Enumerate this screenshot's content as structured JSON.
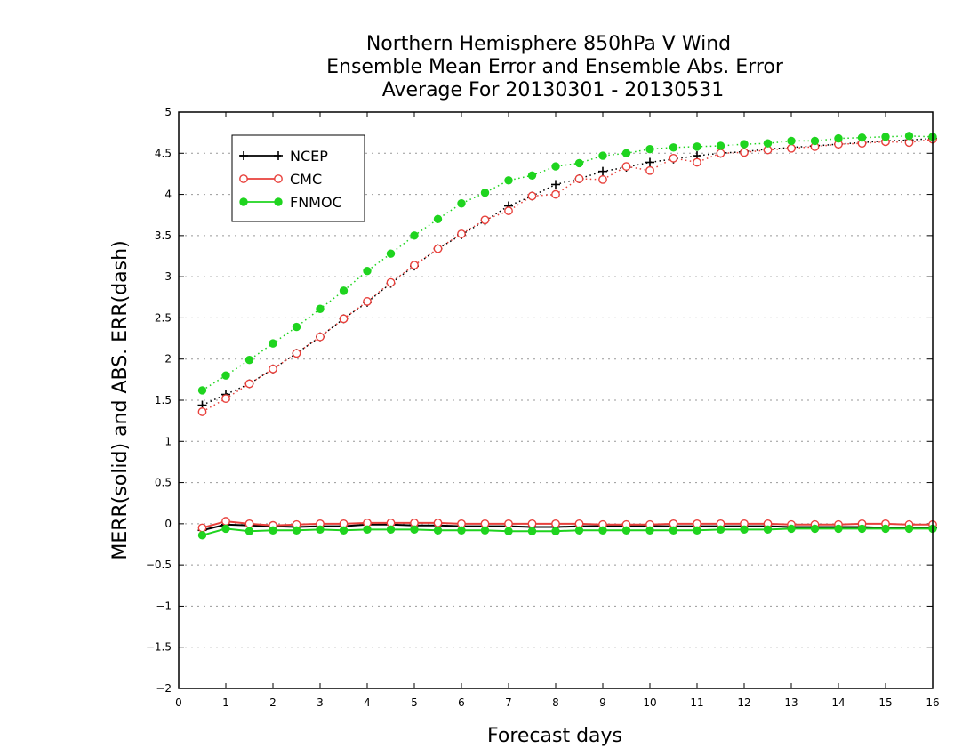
{
  "chart_data": {
    "type": "line",
    "title": [
      "Northern Hemisphere 850hPa V Wind",
      "Ensemble Mean Error and Ensemble Abs. Error",
      "Average For 20130301 - 20130531"
    ],
    "xlabel": "Forecast days",
    "ylabel": "MERR(solid) and ABS. ERR(dash)",
    "xlim": [
      0,
      16
    ],
    "ylim": [
      -2,
      5
    ],
    "x_ticks": [
      0,
      1,
      2,
      3,
      4,
      5,
      6,
      7,
      8,
      9,
      10,
      11,
      12,
      13,
      14,
      15,
      16
    ],
    "y_ticks": [
      -2,
      -1.5,
      -1,
      -0.5,
      0,
      0.5,
      1,
      1.5,
      2,
      2.5,
      3,
      3.5,
      4,
      4.5,
      5
    ],
    "grid": "horizontal dotted",
    "legend_position": "top-left",
    "x": [
      0.5,
      1,
      1.5,
      2,
      2.5,
      3,
      3.5,
      4,
      4.5,
      5,
      5.5,
      6,
      6.5,
      7,
      7.5,
      8,
      8.5,
      9,
      9.5,
      10,
      10.5,
      11,
      11.5,
      12,
      12.5,
      13,
      13.5,
      14,
      14.5,
      15,
      15.5,
      16
    ],
    "series": [
      {
        "name": "NCEP",
        "color": "#000000",
        "marker": "plus",
        "abs_err": [
          1.44,
          1.57,
          1.7,
          1.88,
          2.07,
          2.27,
          2.49,
          2.69,
          2.92,
          3.13,
          3.34,
          3.51,
          3.68,
          3.86,
          3.98,
          4.12,
          4.19,
          4.28,
          4.33,
          4.39,
          4.43,
          4.47,
          4.5,
          4.52,
          4.55,
          4.57,
          4.59,
          4.61,
          4.63,
          4.65,
          4.66,
          4.68
        ],
        "mean_err": [
          -0.08,
          -0.01,
          -0.02,
          -0.03,
          -0.04,
          -0.03,
          -0.03,
          -0.01,
          -0.01,
          -0.02,
          -0.02,
          -0.03,
          -0.03,
          -0.03,
          -0.04,
          -0.04,
          -0.03,
          -0.03,
          -0.03,
          -0.03,
          -0.03,
          -0.03,
          -0.03,
          -0.03,
          -0.03,
          -0.04,
          -0.04,
          -0.04,
          -0.04,
          -0.05,
          -0.05,
          -0.05
        ]
      },
      {
        "name": "CMC",
        "color": "#e8413c",
        "marker": "open-circle",
        "abs_err": [
          1.36,
          1.52,
          1.7,
          1.88,
          2.07,
          2.27,
          2.49,
          2.7,
          2.93,
          3.14,
          3.34,
          3.52,
          3.69,
          3.8,
          3.98,
          4.0,
          4.19,
          4.18,
          4.34,
          4.29,
          4.44,
          4.39,
          4.5,
          4.51,
          4.54,
          4.56,
          4.58,
          4.61,
          4.62,
          4.64,
          4.63,
          4.67
        ],
        "mean_err": [
          -0.05,
          0.03,
          0.0,
          -0.02,
          -0.01,
          0.0,
          0.0,
          0.01,
          0.01,
          0.01,
          0.01,
          0.0,
          0.0,
          0.0,
          0.0,
          0.0,
          0.0,
          -0.01,
          -0.01,
          -0.01,
          0.0,
          0.0,
          0.0,
          0.0,
          0.0,
          -0.01,
          -0.01,
          -0.01,
          0.0,
          0.0,
          -0.01,
          -0.01
        ]
      },
      {
        "name": "FNMOC",
        "color": "#1fd41f",
        "marker": "filled-circle",
        "abs_err": [
          1.62,
          1.8,
          1.99,
          2.19,
          2.39,
          2.61,
          2.83,
          3.07,
          3.28,
          3.5,
          3.7,
          3.89,
          4.02,
          4.17,
          4.23,
          4.34,
          4.38,
          4.47,
          4.5,
          4.55,
          4.57,
          4.58,
          4.59,
          4.61,
          4.62,
          4.65,
          4.65,
          4.68,
          4.69,
          4.7,
          4.71,
          4.7
        ],
        "mean_err": [
          -0.14,
          -0.06,
          -0.09,
          -0.08,
          -0.08,
          -0.07,
          -0.08,
          -0.07,
          -0.07,
          -0.07,
          -0.08,
          -0.08,
          -0.08,
          -0.09,
          -0.09,
          -0.09,
          -0.08,
          -0.08,
          -0.08,
          -0.08,
          -0.08,
          -0.08,
          -0.07,
          -0.07,
          -0.07,
          -0.06,
          -0.06,
          -0.06,
          -0.06,
          -0.06,
          -0.06,
          -0.06
        ]
      }
    ]
  }
}
